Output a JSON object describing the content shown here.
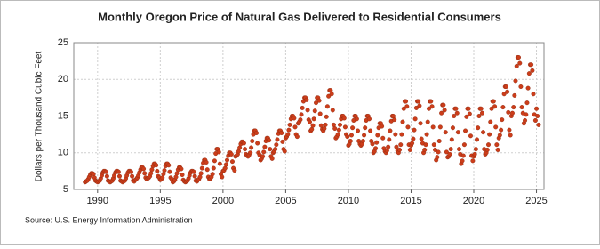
{
  "chart_data": {
    "type": "scatter",
    "title": "Monthly Oregon Price of Natural Gas Delivered to Residential Consumers",
    "y_label": "Dollars per Thousand Cubic Feet",
    "source": "Source: U.S. Energy Information Administration",
    "xlim": [
      1988.1,
      2025.6
    ],
    "xticks": [
      1990,
      1995,
      2000,
      2005,
      2010,
      2015,
      2020,
      2025
    ],
    "ylim": [
      5,
      25
    ],
    "yticks": [
      5,
      10,
      15,
      20,
      25
    ],
    "grid": true,
    "color": "#cc3d1a",
    "x": [
      1989,
      1989.08,
      1989.17,
      1989.25,
      1989.33,
      1989.42,
      1989.5,
      1989.58,
      1989.67,
      1989.75,
      1989.83,
      1989.92,
      1990,
      1990.08,
      1990.17,
      1990.25,
      1990.33,
      1990.42,
      1990.5,
      1990.58,
      1990.67,
      1990.75,
      1990.83,
      1990.92,
      1991,
      1991.08,
      1991.17,
      1991.25,
      1991.33,
      1991.42,
      1991.5,
      1991.58,
      1991.67,
      1991.75,
      1991.83,
      1991.92,
      1992,
      1992.08,
      1992.17,
      1992.25,
      1992.33,
      1992.42,
      1992.5,
      1992.58,
      1992.67,
      1992.75,
      1992.83,
      1992.92,
      1993,
      1993.08,
      1993.17,
      1993.25,
      1993.33,
      1993.42,
      1993.5,
      1993.58,
      1993.67,
      1993.75,
      1993.83,
      1993.92,
      1994,
      1994.08,
      1994.17,
      1994.25,
      1994.33,
      1994.42,
      1994.5,
      1994.58,
      1994.67,
      1994.75,
      1994.83,
      1994.92,
      1995,
      1995.08,
      1995.17,
      1995.25,
      1995.33,
      1995.42,
      1995.5,
      1995.58,
      1995.67,
      1995.75,
      1995.83,
      1995.92,
      1996,
      1996.08,
      1996.17,
      1996.25,
      1996.33,
      1996.42,
      1996.5,
      1996.58,
      1996.67,
      1996.75,
      1996.83,
      1996.92,
      1997,
      1997.08,
      1997.17,
      1997.25,
      1997.33,
      1997.42,
      1997.5,
      1997.58,
      1997.67,
      1997.75,
      1997.83,
      1997.92,
      1998,
      1998.08,
      1998.17,
      1998.25,
      1998.33,
      1998.42,
      1998.5,
      1998.58,
      1998.67,
      1998.75,
      1998.83,
      1998.92,
      1999,
      1999.08,
      1999.17,
      1999.25,
      1999.33,
      1999.42,
      1999.5,
      1999.58,
      1999.67,
      1999.75,
      1999.83,
      1999.92,
      2000,
      2000.08,
      2000.17,
      2000.25,
      2000.33,
      2000.42,
      2000.5,
      2000.58,
      2000.67,
      2000.75,
      2000.83,
      2000.92,
      2001,
      2001.08,
      2001.17,
      2001.25,
      2001.33,
      2001.42,
      2001.5,
      2001.58,
      2001.67,
      2001.75,
      2001.83,
      2001.92,
      2002,
      2002.08,
      2002.17,
      2002.25,
      2002.33,
      2002.42,
      2002.5,
      2002.58,
      2002.67,
      2002.75,
      2002.83,
      2002.92,
      2003,
      2003.08,
      2003.17,
      2003.25,
      2003.33,
      2003.42,
      2003.5,
      2003.58,
      2003.67,
      2003.75,
      2003.83,
      2003.92,
      2004,
      2004.08,
      2004.17,
      2004.25,
      2004.33,
      2004.42,
      2004.5,
      2004.58,
      2004.67,
      2004.75,
      2004.83,
      2004.92,
      2005,
      2005.08,
      2005.17,
      2005.25,
      2005.33,
      2005.42,
      2005.5,
      2005.58,
      2005.67,
      2005.75,
      2005.83,
      2005.92,
      2006,
      2006.08,
      2006.17,
      2006.25,
      2006.33,
      2006.42,
      2006.5,
      2006.58,
      2006.67,
      2006.75,
      2006.83,
      2006.92,
      2007,
      2007.08,
      2007.17,
      2007.25,
      2007.33,
      2007.42,
      2007.5,
      2007.58,
      2007.67,
      2007.75,
      2007.83,
      2007.92,
      2008,
      2008.08,
      2008.17,
      2008.25,
      2008.33,
      2008.42,
      2008.5,
      2008.58,
      2008.67,
      2008.75,
      2008.83,
      2008.92,
      2009,
      2009.08,
      2009.17,
      2009.25,
      2009.33,
      2009.42,
      2009.5,
      2009.58,
      2009.67,
      2009.75,
      2009.83,
      2009.92,
      2010,
      2010.08,
      2010.17,
      2010.25,
      2010.33,
      2010.42,
      2010.5,
      2010.58,
      2010.67,
      2010.75,
      2010.83,
      2010.92,
      2011,
      2011.08,
      2011.17,
      2011.25,
      2011.33,
      2011.42,
      2011.5,
      2011.58,
      2011.67,
      2011.75,
      2011.83,
      2011.92,
      2012,
      2012.08,
      2012.17,
      2012.25,
      2012.33,
      2012.42,
      2012.5,
      2012.58,
      2012.67,
      2012.75,
      2012.83,
      2012.92,
      2013,
      2013.08,
      2013.17,
      2013.25,
      2013.33,
      2013.42,
      2013.5,
      2013.58,
      2013.67,
      2013.75,
      2013.83,
      2013.92,
      2014,
      2014.08,
      2014.17,
      2014.25,
      2014.33,
      2014.42,
      2014.5,
      2014.58,
      2014.67,
      2014.75,
      2014.83,
      2014.92,
      2015,
      2015.08,
      2015.17,
      2015.25,
      2015.33,
      2015.42,
      2015.5,
      2015.58,
      2015.67,
      2015.75,
      2015.83,
      2015.92,
      2016,
      2016.08,
      2016.17,
      2016.25,
      2016.33,
      2016.42,
      2016.5,
      2016.58,
      2016.67,
      2016.75,
      2016.83,
      2016.92,
      2017,
      2017.08,
      2017.17,
      2017.25,
      2017.33,
      2017.42,
      2017.5,
      2017.58,
      2017.67,
      2017.75,
      2017.83,
      2017.92,
      2018,
      2018.08,
      2018.17,
      2018.25,
      2018.33,
      2018.42,
      2018.5,
      2018.58,
      2018.67,
      2018.75,
      2018.83,
      2018.92,
      2019,
      2019.08,
      2019.17,
      2019.25,
      2019.33,
      2019.42,
      2019.5,
      2019.58,
      2019.67,
      2019.75,
      2019.83,
      2019.92,
      2020,
      2020.08,
      2020.17,
      2020.25,
      2020.33,
      2020.42,
      2020.5,
      2020.58,
      2020.67,
      2020.75,
      2020.83,
      2020.92,
      2021,
      2021.08,
      2021.17,
      2021.25,
      2021.33,
      2021.42,
      2021.5,
      2021.58,
      2021.67,
      2021.75,
      2021.83,
      2021.92,
      2022,
      2022.08,
      2022.17,
      2022.25,
      2022.33,
      2022.42,
      2022.5,
      2022.58,
      2022.67,
      2022.75,
      2022.83,
      2022.92,
      2023,
      2023.08,
      2023.17,
      2023.25,
      2023.33,
      2023.42,
      2023.5,
      2023.58,
      2023.67,
      2023.75,
      2023.83,
      2023.92,
      2024,
      2024.08,
      2024.17,
      2024.25,
      2024.33,
      2024.42,
      2024.5,
      2024.58,
      2024.67,
      2024.75,
      2024.83,
      2024.92,
      2025,
      2025.08,
      2025.17
    ],
    "values": [
      6.0,
      6.1,
      6.2,
      6.4,
      6.7,
      7.0,
      7.2,
      7.2,
      7.1,
      6.6,
      6.2,
      6.1,
      6.0,
      6.1,
      6.2,
      6.5,
      6.9,
      7.3,
      7.5,
      7.5,
      7.4,
      6.8,
      6.2,
      6.1,
      6.0,
      6.1,
      6.2,
      6.5,
      6.9,
      7.3,
      7.5,
      7.5,
      7.4,
      6.8,
      6.2,
      6.1,
      6.0,
      6.1,
      6.2,
      6.5,
      6.9,
      7.3,
      7.5,
      7.5,
      7.4,
      6.8,
      6.2,
      6.1,
      6.3,
      6.4,
      6.6,
      6.9,
      7.3,
      7.7,
      8.0,
      8.0,
      7.8,
      7.2,
      6.6,
      6.4,
      6.5,
      6.6,
      6.8,
      7.2,
      7.7,
      8.2,
      8.5,
      8.5,
      8.3,
      7.5,
      6.8,
      6.6,
      6.3,
      6.4,
      6.6,
      7.1,
      7.6,
      8.2,
      8.5,
      8.5,
      8.3,
      7.4,
      6.6,
      6.4,
      6.0,
      6.1,
      6.3,
      6.7,
      7.2,
      7.7,
      8.0,
      8.0,
      7.8,
      7.0,
      6.3,
      6.1,
      6.0,
      6.1,
      6.2,
      6.5,
      6.9,
      7.3,
      7.5,
      7.5,
      7.4,
      6.8,
      6.2,
      6.1,
      6.3,
      6.4,
      6.7,
      7.2,
      7.9,
      8.6,
      9.0,
      9.0,
      8.7,
      7.7,
      6.7,
      6.4,
      6.5,
      6.7,
      7.1,
      7.9,
      8.9,
      9.9,
      10.5,
      10.5,
      10.1,
      8.5,
      7.1,
      6.7,
      7.5,
      7.6,
      7.9,
      8.4,
      9.0,
      9.6,
      10.0,
      10.0,
      9.8,
      8.8,
      7.9,
      7.6,
      9.5,
      9.6,
      9.8,
      10.2,
      10.7,
      11.2,
      11.5,
      11.5,
      11.3,
      10.5,
      9.8,
      9.6,
      9.5,
      9.7,
      10.0,
      10.7,
      11.6,
      12.5,
      13.0,
      13.0,
      12.7,
      11.3,
      10.0,
      9.7,
      9.0,
      9.2,
      9.5,
      10.1,
      10.8,
      11.6,
      12.0,
      12.0,
      11.7,
      10.5,
      9.5,
      9.2,
      10.0,
      10.2,
      10.5,
      11.1,
      11.8,
      12.6,
      13.0,
      13.0,
      12.7,
      11.5,
      10.5,
      10.2,
      12.0,
      12.2,
      12.5,
      13.1,
      13.8,
      14.6,
      15.0,
      15.0,
      14.7,
      13.5,
      12.5,
      12.2,
      14.0,
      14.2,
      14.5,
      15.2,
      16.1,
      17.0,
      17.5,
      17.5,
      17.2,
      15.8,
      14.5,
      14.2,
      13.0,
      13.2,
      13.7,
      14.6,
      15.7,
      16.8,
      17.5,
      17.5,
      17.1,
      15.3,
      13.7,
      13.2,
      13.0,
      13.3,
      13.8,
      14.9,
      16.3,
      17.7,
      18.5,
      18.5,
      18.0,
      15.8,
      13.8,
      13.3,
      12.0,
      12.2,
      12.5,
      13.1,
      13.8,
      14.6,
      15.0,
      15.0,
      14.7,
      13.5,
      12.5,
      12.2,
      11.0,
      11.2,
      11.6,
      12.4,
      13.4,
      14.4,
      15.0,
      15.0,
      14.6,
      13.0,
      11.6,
      11.2,
      11.0,
      11.2,
      11.6,
      12.4,
      13.4,
      14.4,
      15.0,
      15.0,
      14.6,
      13.0,
      11.6,
      11.2,
      10.0,
      10.2,
      10.6,
      11.4,
      12.4,
      13.4,
      14.0,
      14.0,
      13.6,
      12.0,
      10.6,
      10.2,
      10.0,
      10.3,
      10.8,
      11.8,
      13.0,
      14.3,
      15.0,
      15.0,
      14.5,
      12.5,
      10.8,
      10.3,
      10.0,
      10.4,
      11.1,
      12.5,
      14.2,
      16.0,
      17.0,
      17.0,
      16.3,
      13.5,
      11.1,
      10.4,
      11.0,
      11.3,
      11.9,
      13.1,
      14.6,
      16.1,
      17.0,
      17.0,
      16.4,
      14.0,
      11.9,
      11.3,
      10.0,
      10.4,
      11.1,
      12.5,
      14.2,
      16.0,
      17.0,
      17.0,
      16.3,
      13.5,
      11.1,
      10.4,
      9.0,
      9.4,
      10.1,
      11.6,
      13.5,
      15.4,
      16.5,
      16.5,
      15.8,
      12.8,
      10.1,
      9.4,
      9.5,
      9.8,
      10.5,
      11.8,
      13.4,
      15.0,
      16.0,
      16.0,
      15.4,
      12.8,
      10.5,
      9.8,
      8.5,
      8.9,
      9.6,
      11.1,
      13.0,
      14.9,
      16.0,
      16.0,
      15.3,
      12.3,
      9.6,
      8.9,
      9.5,
      9.8,
      10.5,
      11.8,
      13.4,
      15.0,
      16.0,
      16.0,
      15.4,
      12.8,
      10.5,
      9.8,
      10.0,
      10.4,
      11.1,
      12.5,
      14.2,
      16.0,
      17.0,
      17.0,
      16.3,
      13.5,
      11.1,
      10.4,
      12.0,
      12.4,
      13.1,
      14.5,
      16.2,
      18.0,
      19.0,
      19.0,
      18.3,
      15.5,
      13.1,
      12.4,
      15.0,
      15.4,
      16.2,
      17.8,
      19.8,
      21.8,
      23.0,
      23.0,
      22.2,
      19.0,
      16.2,
      15.4,
      14.0,
      14.4,
      15.2,
      16.8,
      18.8,
      20.8,
      22.0,
      22.0,
      21.2,
      18.0,
      15.2,
      14.4,
      16.0,
      15.0,
      13.8
    ]
  }
}
